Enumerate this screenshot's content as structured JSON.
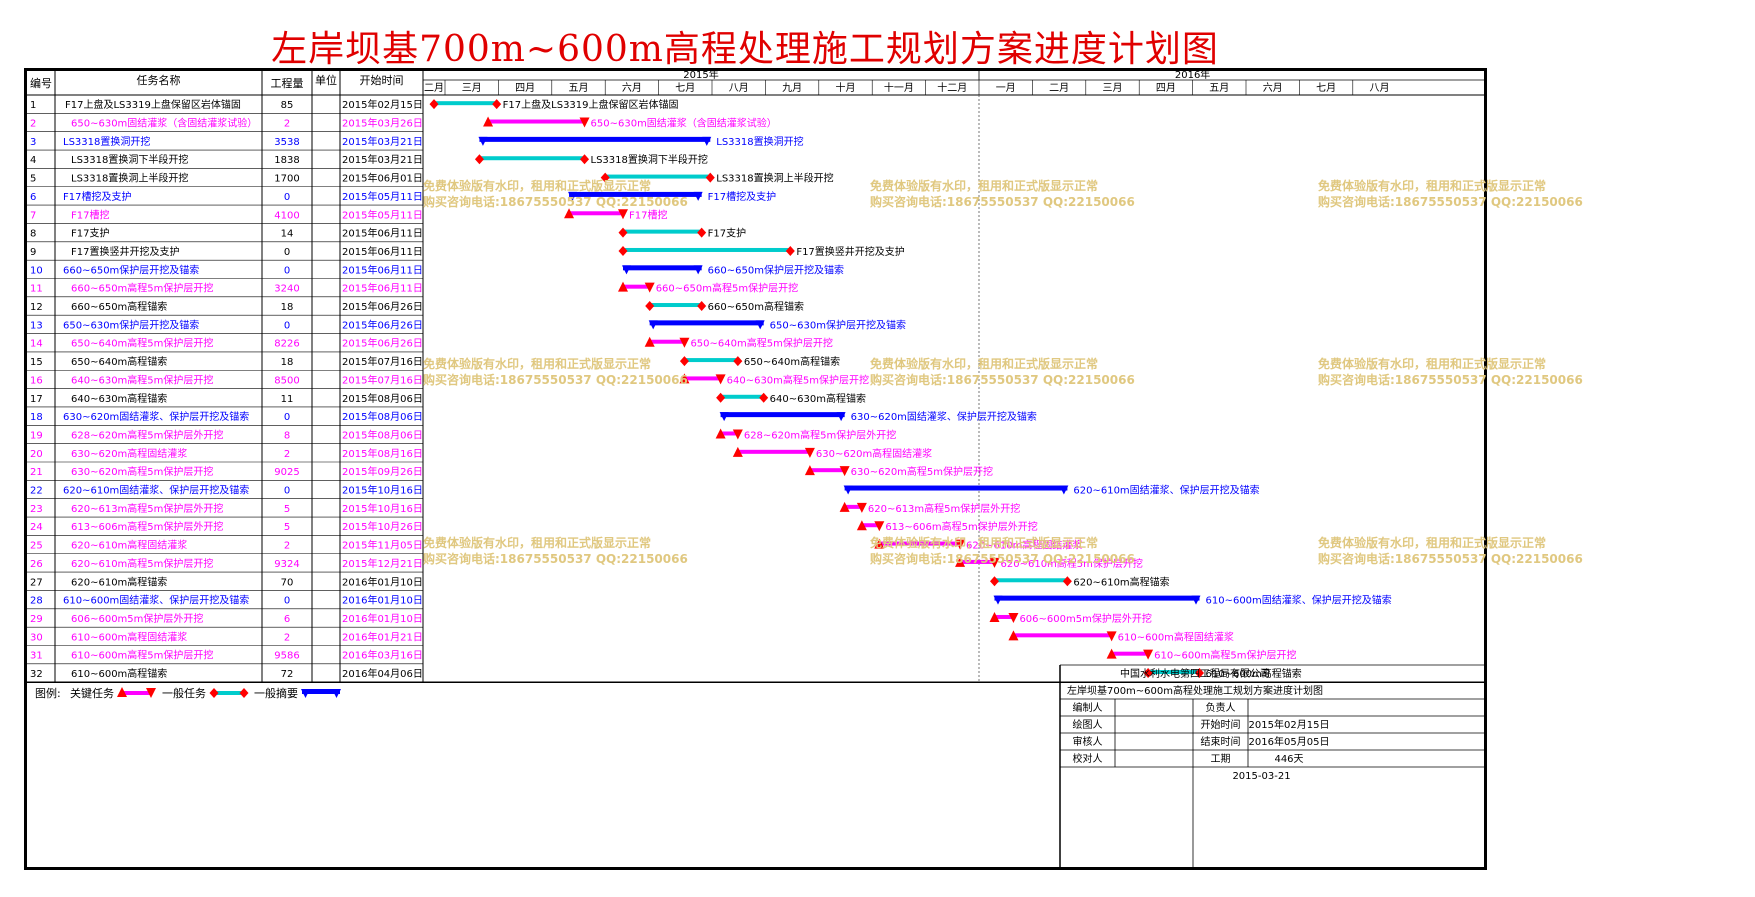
{
  "title": "左岸坝基700m~600m高程处理施工规划方案进度计划图",
  "colors": {
    "title": "#e00000",
    "critical_task": "#ff00ff",
    "critical_marker": "#ff0000",
    "general_task": "#00cccc",
    "general_marker": "#ff0000",
    "summary": "#0000ff",
    "blue_text": "#0000ff",
    "magenta_text": "#ff00ff",
    "black_text": "#000000",
    "watermark": "#e0c880"
  },
  "table_headers": {
    "id": "编号",
    "name": "任务名称",
    "qty": "工程量",
    "unit": "单位",
    "start": "开始时间"
  },
  "timeline": {
    "years": [
      {
        "label": "2015年",
        "months": [
          "二月",
          "三月",
          "四月",
          "五月",
          "六月",
          "七月",
          "八月",
          "九月",
          "十月",
          "十一月",
          "十二月"
        ]
      },
      {
        "label": "2016年",
        "months": [
          "一月",
          "二月",
          "三月",
          "四月",
          "五月",
          "六月",
          "七月",
          "八月"
        ]
      }
    ]
  },
  "watermark": {
    "line1": "免费体验版有水印，租用和正式版显示正常",
    "line2": "购买咨询电话:18675550537 QQ:22150066"
  },
  "legend": {
    "label": "图例:",
    "critical": "关键任务",
    "general": "一般任务",
    "summary": "一般摘要"
  },
  "titleblock": {
    "company": "中国水利水电第四工程局有限公司",
    "plan_title": "左岸坝基700m~600m高程处理施工规划方案进度计划图",
    "editor_label": "编制人",
    "owner_label": "负责人",
    "drawer_label": "绘图人",
    "start_label": "开始时间",
    "start_value": "2015年02月15日",
    "reviewer_label": "审核人",
    "end_label": "结束时间",
    "end_value": "2016年05月05日",
    "checker_label": "校对人",
    "duration_label": "工期",
    "duration_value": "446天",
    "date": "2015-03-21"
  },
  "chart_data": {
    "type": "gantt",
    "x_axis": {
      "start": "2015-02-01",
      "end": "2016-09-01",
      "unit": "month"
    },
    "tasks": [
      {
        "id": "1",
        "name": "F17上盘及LS3319上盘保留区岩体锚固",
        "qty": "85",
        "unit": "",
        "start_text": "2015年02月15日",
        "start": "2015-02-15",
        "end": "2015-03-31",
        "kind": "general",
        "label": "F17上盘及LS3319上盘保留区岩体锚固"
      },
      {
        "id": "2",
        "name": "650~630m固结灌浆（含固结灌浆试验）",
        "qty": "2",
        "unit": "",
        "start_text": "2015年03月26日",
        "start": "2015-03-26",
        "end": "2015-05-20",
        "kind": "critical",
        "label": "650~630m固结灌浆（含固结灌浆试验）"
      },
      {
        "id": "3",
        "name": "LS3318置换洞开挖",
        "qty": "3538",
        "unit": "",
        "start_text": "2015年03月21日",
        "start": "2015-03-21",
        "end": "2015-07-31",
        "kind": "summary",
        "label": "LS3318置换洞开挖"
      },
      {
        "id": "4",
        "name": "LS3318置换洞下半段开挖",
        "qty": "1838",
        "unit": "",
        "start_text": "2015年03月21日",
        "start": "2015-03-21",
        "end": "2015-05-20",
        "kind": "general",
        "label": "LS3318置换洞下半段开挖"
      },
      {
        "id": "5",
        "name": "LS3318置换洞上半段开挖",
        "qty": "1700",
        "unit": "",
        "start_text": "2015年06月01日",
        "start": "2015-06-01",
        "end": "2015-07-31",
        "kind": "general",
        "label": "LS3318置换洞上半段开挖"
      },
      {
        "id": "6",
        "name": "F17槽挖及支护",
        "qty": "0",
        "unit": "",
        "start_text": "2015年05月11日",
        "start": "2015-05-11",
        "end": "2015-07-26",
        "kind": "summary",
        "label": "F17槽挖及支护"
      },
      {
        "id": "7",
        "name": "F17槽挖",
        "qty": "4100",
        "unit": "",
        "start_text": "2015年05月11日",
        "start": "2015-05-11",
        "end": "2015-06-11",
        "kind": "critical",
        "label": "F17槽挖"
      },
      {
        "id": "8",
        "name": "F17支护",
        "qty": "14",
        "unit": "",
        "start_text": "2015年06月11日",
        "start": "2015-06-11",
        "end": "2015-07-26",
        "kind": "general",
        "label": "F17支护"
      },
      {
        "id": "9",
        "name": "F17置换竖井开挖及支护",
        "qty": "0",
        "unit": "",
        "start_text": "2015年06月11日",
        "start": "2015-06-11",
        "end": "2015-09-15",
        "kind": "general",
        "label": "F17置换竖井开挖及支护"
      },
      {
        "id": "10",
        "name": "660~650m保护层开挖及锚索",
        "qty": "0",
        "unit": "",
        "start_text": "2015年06月11日",
        "start": "2015-06-11",
        "end": "2015-07-26",
        "kind": "summary",
        "label": "660~650m保护层开挖及锚索"
      },
      {
        "id": "11",
        "name": "660~650m高程5m保护层开挖",
        "qty": "3240",
        "unit": "",
        "start_text": "2015年06月11日",
        "start": "2015-06-11",
        "end": "2015-06-26",
        "kind": "critical",
        "label": "660~650m高程5m保护层开挖"
      },
      {
        "id": "12",
        "name": "660~650m高程锚索",
        "qty": "18",
        "unit": "",
        "start_text": "2015年06月26日",
        "start": "2015-06-26",
        "end": "2015-07-26",
        "kind": "general",
        "label": "660~650m高程锚索"
      },
      {
        "id": "13",
        "name": "650~630m保护层开挖及锚索",
        "qty": "0",
        "unit": "",
        "start_text": "2015年06月26日",
        "start": "2015-06-26",
        "end": "2015-08-31",
        "kind": "summary",
        "label": "650~630m保护层开挖及锚索"
      },
      {
        "id": "14",
        "name": "650~640m高程5m保护层开挖",
        "qty": "8226",
        "unit": "",
        "start_text": "2015年06月26日",
        "start": "2015-06-26",
        "end": "2015-07-16",
        "kind": "critical",
        "label": "650~640m高程5m保护层开挖"
      },
      {
        "id": "15",
        "name": "650~640m高程锚索",
        "qty": "18",
        "unit": "",
        "start_text": "2015年07月16日",
        "start": "2015-07-16",
        "end": "2015-08-16",
        "kind": "general",
        "label": "650~640m高程锚索"
      },
      {
        "id": "16",
        "name": "640~630m高程5m保护层开挖",
        "qty": "8500",
        "unit": "",
        "start_text": "2015年07月16日",
        "start": "2015-07-16",
        "end": "2015-08-06",
        "kind": "critical",
        "label": "640~630m高程5m保护层开挖"
      },
      {
        "id": "17",
        "name": "640~630m高程锚索",
        "qty": "11",
        "unit": "",
        "start_text": "2015年08月06日",
        "start": "2015-08-06",
        "end": "2015-08-31",
        "kind": "general",
        "label": "640~630m高程锚索"
      },
      {
        "id": "18",
        "name": "630~620m固结灌浆、保护层开挖及锚索",
        "qty": "0",
        "unit": "",
        "start_text": "2015年08月06日",
        "start": "2015-08-06",
        "end": "2015-10-16",
        "kind": "summary",
        "label": "630~620m固结灌浆、保护层开挖及锚索"
      },
      {
        "id": "19",
        "name": "628~620m高程5m保护层外开挖",
        "qty": "8",
        "unit": "",
        "start_text": "2015年08月06日",
        "start": "2015-08-06",
        "end": "2015-08-16",
        "kind": "critical",
        "label": "628~620m高程5m保护层外开挖"
      },
      {
        "id": "20",
        "name": "630~620m高程固结灌浆",
        "qty": "2",
        "unit": "",
        "start_text": "2015年08月16日",
        "start": "2015-08-16",
        "end": "2015-09-26",
        "kind": "critical",
        "label": "630~620m高程固结灌浆"
      },
      {
        "id": "21",
        "name": "630~620m高程5m保护层开挖",
        "qty": "9025",
        "unit": "",
        "start_text": "2015年09月26日",
        "start": "2015-09-26",
        "end": "2015-10-16",
        "kind": "critical",
        "label": "630~620m高程5m保护层开挖"
      },
      {
        "id": "22",
        "name": "620~610m固结灌浆、保护层开挖及锚索",
        "qty": "0",
        "unit": "",
        "start_text": "2015年10月16日",
        "start": "2015-10-16",
        "end": "2016-02-20",
        "kind": "summary",
        "label": "620~610m固结灌浆、保护层开挖及锚索"
      },
      {
        "id": "23",
        "name": "620~613m高程5m保护层外开挖",
        "qty": "5",
        "unit": "",
        "start_text": "2015年10月16日",
        "start": "2015-10-16",
        "end": "2015-10-26",
        "kind": "critical",
        "label": "620~613m高程5m保护层外开挖"
      },
      {
        "id": "24",
        "name": "613~606m高程5m保护层外开挖",
        "qty": "5",
        "unit": "",
        "start_text": "2015年10月26日",
        "start": "2015-10-26",
        "end": "2015-11-05",
        "kind": "critical",
        "label": "613~606m高程5m保护层外开挖"
      },
      {
        "id": "25",
        "name": "620~610m高程固结灌浆",
        "qty": "2",
        "unit": "",
        "start_text": "2015年11月05日",
        "start": "2015-11-05",
        "end": "2015-12-21",
        "kind": "critical",
        "label": "620~610m高程固结灌浆"
      },
      {
        "id": "26",
        "name": "620~610m高程5m保护层开挖",
        "qty": "9324",
        "unit": "",
        "start_text": "2015年12月21日",
        "start": "2015-12-21",
        "end": "2016-01-10",
        "kind": "critical",
        "label": "620~610m高程5m保护层开挖"
      },
      {
        "id": "27",
        "name": "620~610m高程锚索",
        "qty": "70",
        "unit": "",
        "start_text": "2016年01月10日",
        "start": "2016-01-10",
        "end": "2016-02-20",
        "kind": "general",
        "label": "620~610m高程锚索"
      },
      {
        "id": "28",
        "name": "610~600m固结灌浆、保护层开挖及锚索",
        "qty": "0",
        "unit": "",
        "start_text": "2016年01月10日",
        "start": "2016-01-10",
        "end": "2016-05-05",
        "kind": "summary",
        "label": "610~600m固结灌浆、保护层开挖及锚索"
      },
      {
        "id": "29",
        "name": "606~600m5m保护层外开挖",
        "qty": "6",
        "unit": "",
        "start_text": "2016年01月10日",
        "start": "2016-01-10",
        "end": "2016-01-21",
        "kind": "critical",
        "label": "606~600m5m保护层外开挖"
      },
      {
        "id": "30",
        "name": "610~600m高程固结灌浆",
        "qty": "2",
        "unit": "",
        "start_text": "2016年01月21日",
        "start": "2016-01-21",
        "end": "2016-03-16",
        "kind": "critical",
        "label": "610~600m高程固结灌浆"
      },
      {
        "id": "31",
        "name": "610~600m高程5m保护层开挖",
        "qty": "9586",
        "unit": "",
        "start_text": "2016年03月16日",
        "start": "2016-03-16",
        "end": "2016-04-06",
        "kind": "critical",
        "label": "610~600m高程5m保护层开挖"
      },
      {
        "id": "32",
        "name": "610~600m高程锚索",
        "qty": "72",
        "unit": "",
        "start_text": "2016年04月06日",
        "start": "2016-04-06",
        "end": "2016-05-05",
        "kind": "general",
        "label": "610~600m高程锚索"
      }
    ]
  }
}
